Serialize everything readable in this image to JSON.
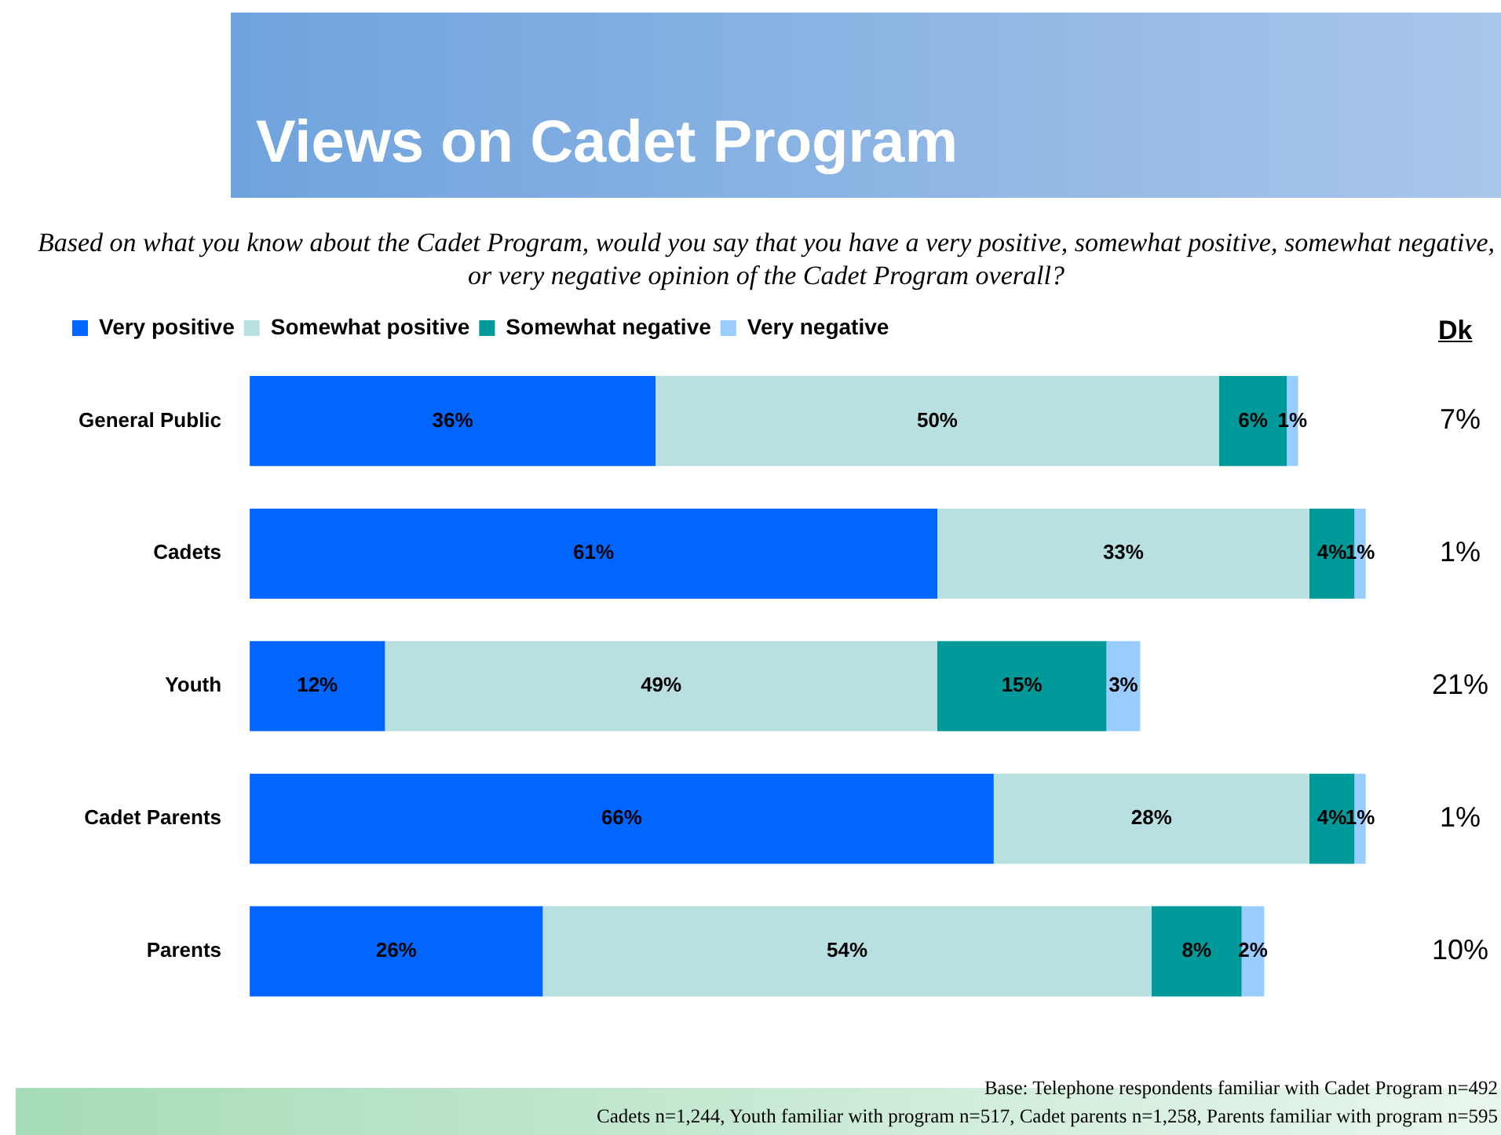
{
  "chart_data": {
    "type": "bar",
    "orientation": "horizontal",
    "stacked": true,
    "title": "Views on Cadet Program",
    "subtitle": "Based on what you know about the Cadet Program, would you say that you have a very positive, somewhat positive, somewhat negative, or very negative opinion of the Cadet Program overall?",
    "categories": [
      "General Public",
      "Cadets",
      "Youth",
      "Cadet Parents",
      "Parents"
    ],
    "series": [
      {
        "name": "Very positive",
        "color": "#0066ff",
        "values": [
          36,
          61,
          12,
          66,
          26
        ],
        "value_labels": [
          "36%",
          "61%",
          "12%",
          "66%",
          "26%"
        ]
      },
      {
        "name": "Somewhat positive",
        "color": "#b8e0e0",
        "values": [
          50,
          33,
          49,
          28,
          54
        ],
        "value_labels": [
          "50%",
          "33%",
          "49%",
          "28%",
          "54%"
        ]
      },
      {
        "name": "Somewhat negative",
        "color": "#009999",
        "values": [
          6,
          4,
          15,
          4,
          8
        ],
        "value_labels": [
          "6%",
          "4%",
          "15%",
          "4%",
          "8%"
        ]
      },
      {
        "name": "Very negative",
        "color": "#99ccff",
        "values": [
          1,
          1,
          3,
          1,
          2
        ],
        "value_labels": [
          "1%",
          "1%",
          "3%",
          "1%",
          "2%"
        ]
      }
    ],
    "tick_labels": "y",
    "grid": false,
    "legend": "top",
    "annotations": [
      "Dk",
      "7%",
      "1%",
      "21%",
      "1%",
      "10%",
      "Base: Telephone respondents familiar with Cadet Program n=492",
      "Cadets n=1,244, Youth familiar with program n=517,  Cadet parents n=1,258, Parents familiar with program n=595"
    ]
  }
}
